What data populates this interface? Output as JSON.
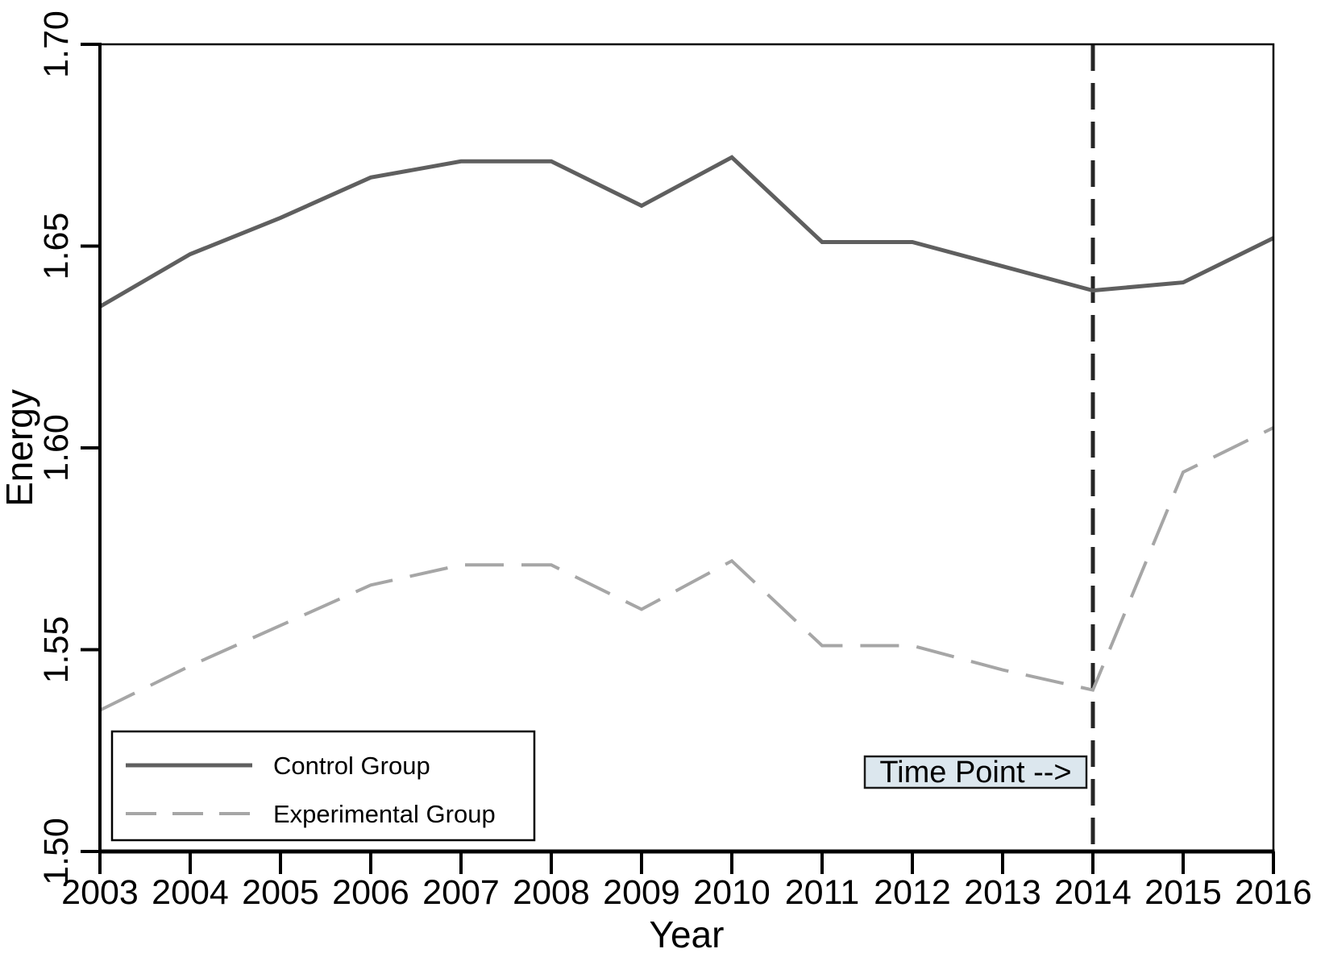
{
  "figure": {
    "type": "line-chart",
    "background": "#ffffff"
  },
  "chart_data": {
    "type": "line",
    "title": "",
    "xlabel": "Year",
    "ylabel": "Energy",
    "x": [
      2003,
      2004,
      2005,
      2006,
      2007,
      2008,
      2009,
      2010,
      2011,
      2012,
      2013,
      2014,
      2015,
      2016
    ],
    "series": [
      {
        "name": "Control Group",
        "style": "solid",
        "color": "#5f5f5f",
        "width": 5,
        "values": [
          1.635,
          1.648,
          1.657,
          1.667,
          1.671,
          1.671,
          1.66,
          1.672,
          1.651,
          1.651,
          1.645,
          1.639,
          1.641,
          1.652
        ]
      },
      {
        "name": "Experimental Group",
        "style": "dashed",
        "color": "#a6a6a6",
        "width": 4,
        "values": [
          1.535,
          1.546,
          1.556,
          1.566,
          1.571,
          1.571,
          1.56,
          1.572,
          1.551,
          1.551,
          1.545,
          1.54,
          1.594,
          1.605
        ]
      }
    ],
    "xlim": [
      2003,
      2016
    ],
    "ylim": [
      1.5,
      1.7
    ],
    "xticks": [
      2003,
      2004,
      2005,
      2006,
      2007,
      2008,
      2009,
      2010,
      2011,
      2012,
      2013,
      2014,
      2015,
      2016
    ],
    "xtick_labels": [
      "2003",
      "2004",
      "2005",
      "2006",
      "2007",
      "2008",
      "2009",
      "2010",
      "2011",
      "2012",
      "2013",
      "2014",
      "2015",
      "2016"
    ],
    "yticks": [
      1.5,
      1.55,
      1.6,
      1.65,
      1.7
    ],
    "ytick_labels": [
      "1.50",
      "1.55",
      "1.60",
      "1.65",
      "1.70"
    ],
    "grid": false,
    "legend_position": "bottom-left",
    "vline": {
      "x": 2014,
      "style": "dashed",
      "color": "#262626",
      "width": 5
    },
    "annotation": {
      "label": "Time Point -->",
      "at_x": 2014,
      "fill": "#dce7ee",
      "border": "#1a1a1a",
      "text_color": "#000000"
    }
  },
  "legend": {
    "items": [
      {
        "label": "Control Group"
      },
      {
        "label": "Experimental Group"
      }
    ],
    "border_color": "#000000",
    "fill": "#ffffff"
  },
  "colors": {
    "axis": "#000000",
    "tick_text": "#000000",
    "control_line": "#5f5f5f",
    "experimental_line": "#a6a6a6",
    "time_point_line": "#262626",
    "annotation_fill": "#dce7ee",
    "annotation_border": "#1a1a1a"
  }
}
